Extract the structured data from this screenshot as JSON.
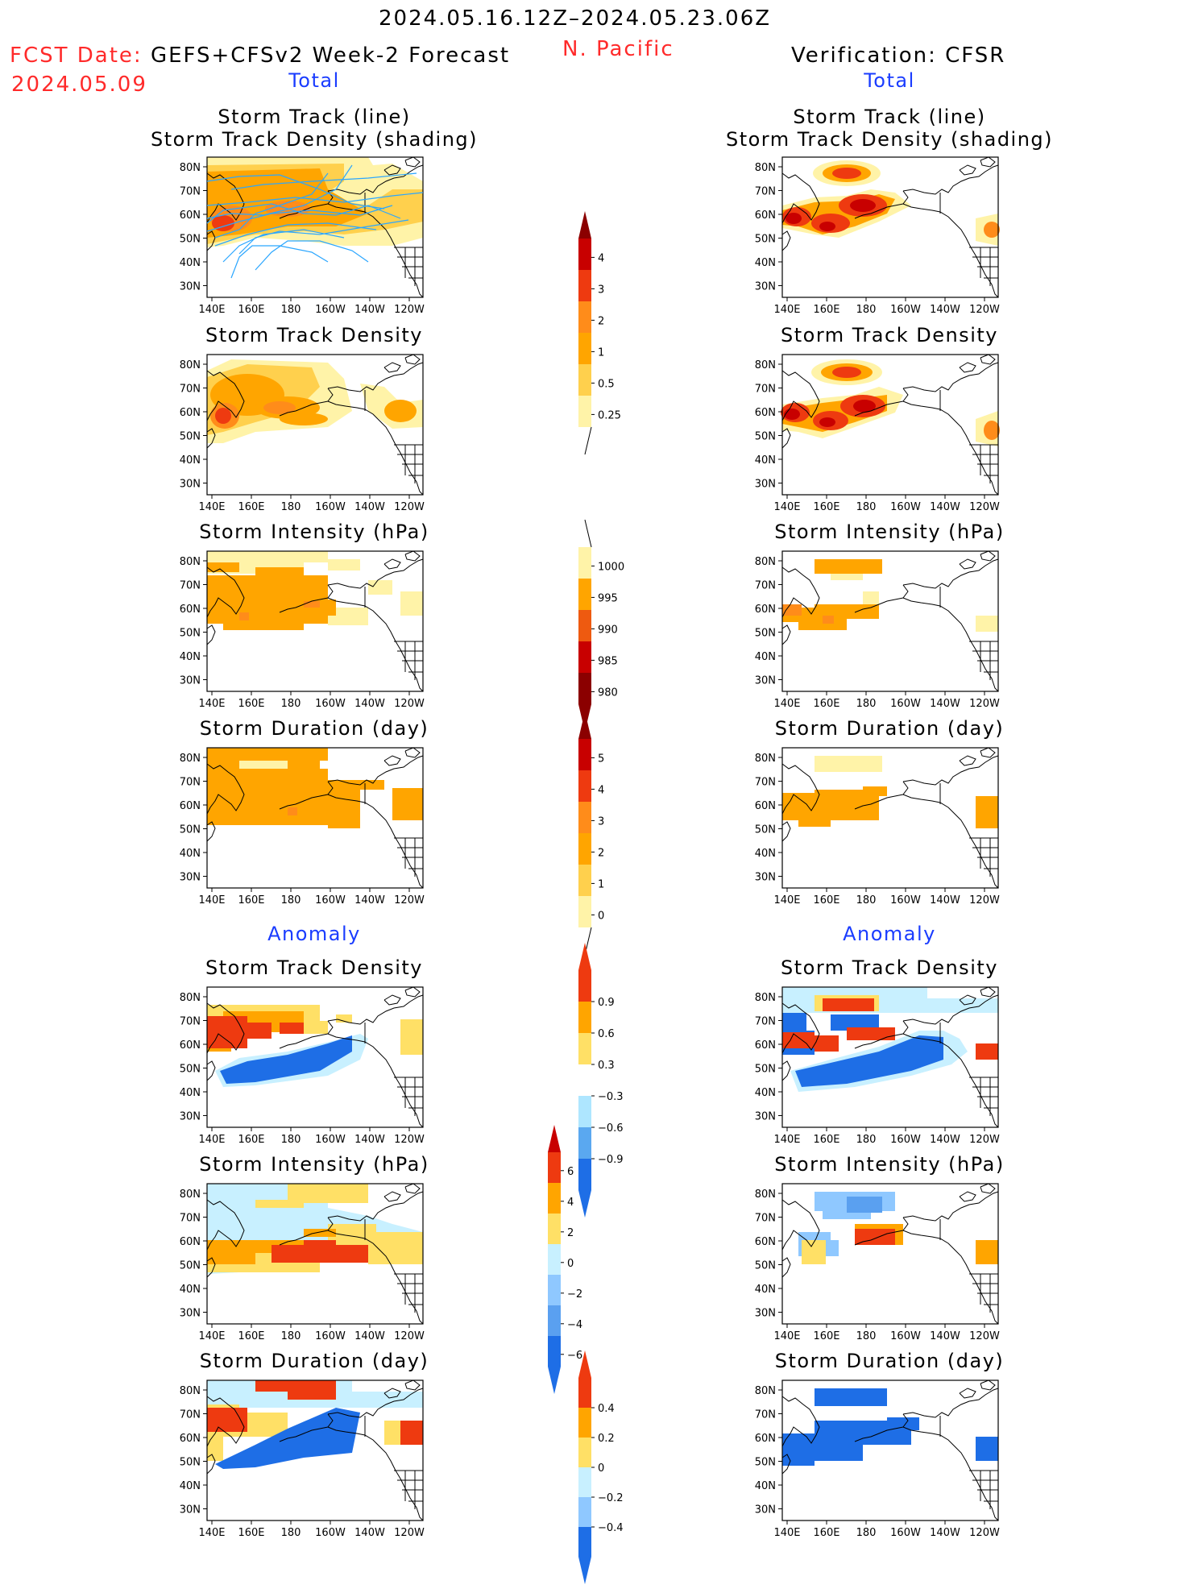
{
  "header": {
    "period": "2024.05.16.12Z–2024.05.23.06Z",
    "region": "N. Pacific",
    "fcst_label": "FCST Date:",
    "fcst_model": "GEFS+CFSv2 Week-2 Forecast",
    "fcst_date": "2024.05.09",
    "verification": "Verification: CFSR"
  },
  "sections": {
    "total": "Total",
    "anomaly": "Anomaly"
  },
  "panel_titles": {
    "track_line": "Storm Track (line)",
    "track_shading": "Storm Track Density (shading)",
    "density": "Storm Track Density",
    "intensity": "Storm Intensity (hPa)",
    "duration": "Storm Duration (day)"
  },
  "axes": {
    "lat_ticks": [
      "80N",
      "70N",
      "60N",
      "50N",
      "40N",
      "30N"
    ],
    "lon_ticks": [
      "140E",
      "160E",
      "180",
      "160W",
      "140W",
      "120W"
    ]
  },
  "colorbars": [
    {
      "name": "density-colorbar",
      "labels": [
        "4",
        "3",
        "2",
        "1",
        "0.5",
        "0.25"
      ],
      "colors": [
        "#c80000",
        "#ee3a10",
        "#ff8c1a",
        "#ffa500",
        "#ffd04d",
        "#fff3a8"
      ],
      "top_arrow": "#8b0000",
      "bottom_arrow": "none"
    },
    {
      "name": "intensity-colorbar",
      "labels": [
        "1000",
        "995",
        "990",
        "985",
        "980"
      ],
      "colors": [
        "#fff3a8",
        "#ffa500",
        "#ee5a10",
        "#c80000",
        "#8b0000"
      ],
      "top_arrow": "none",
      "bottom_arrow": "#8b0000"
    },
    {
      "name": "duration-colorbar",
      "labels": [
        "5",
        "4",
        "3",
        "2",
        "1",
        "0"
      ],
      "colors": [
        "#c80000",
        "#ee3a10",
        "#ff8c1a",
        "#ffa500",
        "#ffd04d",
        "#fff3a8"
      ],
      "top_arrow": "#8b0000",
      "bottom_arrow": "none"
    },
    {
      "name": "density-anomaly-colorbar",
      "labels": [
        "0.9",
        "0.6",
        "0.3",
        "−0.3",
        "−0.6",
        "−0.9"
      ],
      "colors": [
        "#ee3a10",
        "#ffa500",
        "#ffe066",
        "#ffffff",
        "#aee6ff",
        "#5aa8f0",
        "#1e6ee6"
      ],
      "top_arrow": "#ee3a10",
      "bottom_arrow": "#1e6ee6"
    },
    {
      "name": "intensity-anomaly-colorbar",
      "labels": [
        "6",
        "4",
        "2",
        "0",
        "−2",
        "−4",
        "−6"
      ],
      "colors": [
        "#ee3a10",
        "#ffa500",
        "#ffe066",
        "#c8f0ff",
        "#8fc8ff",
        "#5aa0f0",
        "#1e6ee6"
      ],
      "top_arrow": "#c80000",
      "bottom_arrow": "#1e6ee6"
    },
    {
      "name": "duration-anomaly-colorbar",
      "labels": [
        "0.4",
        "0.2",
        "0",
        "−0.2",
        "−0.4"
      ],
      "colors": [
        "#ee3a10",
        "#ffa500",
        "#ffe066",
        "#c8f0ff",
        "#8fc8ff",
        "#1e6ee6"
      ],
      "top_arrow": "#ee3a10",
      "bottom_arrow": "#1e6ee6"
    }
  ]
}
